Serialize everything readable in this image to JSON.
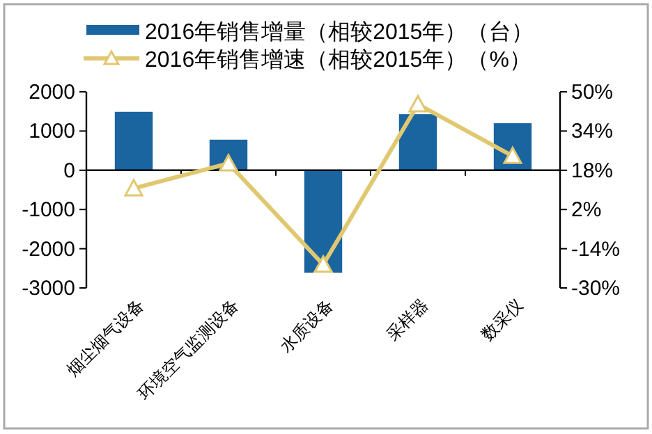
{
  "chart_data": {
    "type": "bar",
    "categories": [
      "烟尘烟气设备",
      "环境空气监测设备",
      "水质设备",
      "采样器",
      "数采仪"
    ],
    "series": [
      {
        "name": "2016年销售增量（相较2015年）（台）",
        "color": "#1a64a0",
        "values": [
          1490,
          780,
          -2610,
          1430,
          1200
        ]
      },
      {
        "name": "2016年销售增速（相较2015年）（%）",
        "type": "line",
        "axis": "y2",
        "color": "#e0c870",
        "marker": "triangle",
        "values": [
          10.6,
          20.8,
          -20.5,
          44.9,
          23.8
        ]
      }
    ],
    "ylim": [
      -3000,
      2000
    ],
    "yticks": [
      -3000,
      -2000,
      -1000,
      0,
      1000,
      2000
    ],
    "y2lim": [
      -30,
      50
    ],
    "y2ticks": [
      {
        "value": -30,
        "label": "-30%"
      },
      {
        "value": -14,
        "label": "-14%"
      },
      {
        "value": 2,
        "label": "2%"
      },
      {
        "value": 18,
        "label": "18%"
      },
      {
        "value": 34,
        "label": "34%"
      },
      {
        "value": 50,
        "label": "50%"
      }
    ],
    "legend": "top"
  }
}
